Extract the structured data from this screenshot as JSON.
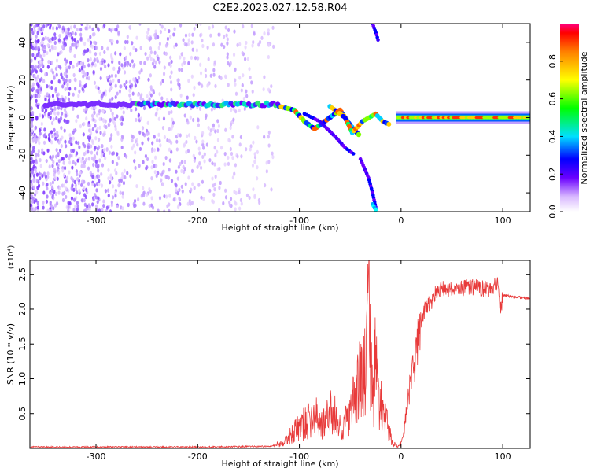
{
  "title": "C2E2.2023.027.12.58.R04",
  "chart_data": [
    {
      "type": "heatmap",
      "xlabel": "Height of straight line (km)",
      "ylabel": "Frequency (Hz)",
      "xlim": [
        -365,
        127
      ],
      "ylim": [
        -50,
        50
      ],
      "xticks": [
        -300,
        -200,
        -100,
        0,
        100
      ],
      "yticks": [
        -40,
        -20,
        0,
        20,
        40
      ],
      "colorbar": {
        "label": "Normalized spectral amplitude",
        "range": [
          0,
          1
        ],
        "ticks": [
          "0.0",
          "0.2",
          "0.4",
          "0.6",
          "0.8"
        ]
      }
    },
    {
      "type": "line",
      "xlabel": "Height of straight line (km)",
      "ylabel": "SNR (10 * v/v)",
      "scale_label": "(x10⁴)",
      "xlim": [
        -365,
        127
      ],
      "ylim": [
        0,
        2.7
      ],
      "xticks": [
        -300,
        -200,
        -100,
        0,
        100
      ],
      "yticks": [
        "0.5",
        "1.0",
        "1.5",
        "2.0",
        "2.5"
      ],
      "line_color": "#e83a3a",
      "series": [
        {
          "x": [
            -365,
            -300,
            -200,
            -130,
            -115,
            -105,
            -95,
            -85,
            -75,
            -68,
            -60,
            -50,
            -42,
            -35,
            -31,
            -28,
            -25,
            -22,
            -18,
            -14,
            -10,
            -6,
            -2,
            2,
            6,
            10,
            14,
            18,
            22,
            26,
            30,
            35,
            40,
            50,
            60,
            70,
            80,
            90,
            95,
            98,
            100,
            110,
            127
          ],
          "values": [
            0.02,
            0.02,
            0.02,
            0.03,
            0.08,
            0.25,
            0.35,
            0.45,
            0.35,
            0.55,
            0.3,
            0.45,
            0.9,
            1.1,
            2.0,
            0.6,
            1.3,
            0.8,
            0.45,
            0.35,
            0.15,
            0.05,
            0.03,
            0.15,
            0.6,
            1.0,
            1.3,
            1.65,
            1.95,
            2.05,
            2.1,
            2.25,
            2.3,
            2.28,
            2.3,
            2.32,
            2.3,
            2.3,
            2.35,
            1.95,
            2.2,
            2.18,
            2.15
          ]
        }
      ]
    }
  ]
}
